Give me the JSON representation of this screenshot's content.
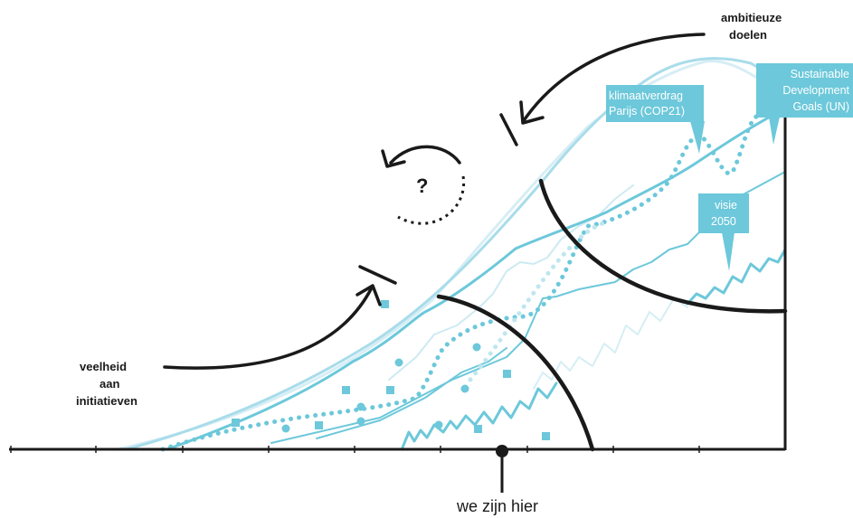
{
  "colors": {
    "accent": "#6cc8da",
    "accent_light": "#bfe6ef",
    "accent_pale": "#dcf1f6",
    "ink": "#1a1a1a"
  },
  "labels": {
    "top_right": [
      "ambitieuze",
      "doelen"
    ],
    "left": [
      "veelheid",
      "aan",
      "initiatieven"
    ],
    "bottom": "we zijn hier",
    "question": "?"
  },
  "callouts": {
    "cop21": [
      "klimaatverdrag",
      "Parijs (COP21)"
    ],
    "sdg": [
      "Sustainable",
      "Development",
      "Goals (UN)"
    ],
    "visie": [
      "visie",
      "2050"
    ]
  }
}
